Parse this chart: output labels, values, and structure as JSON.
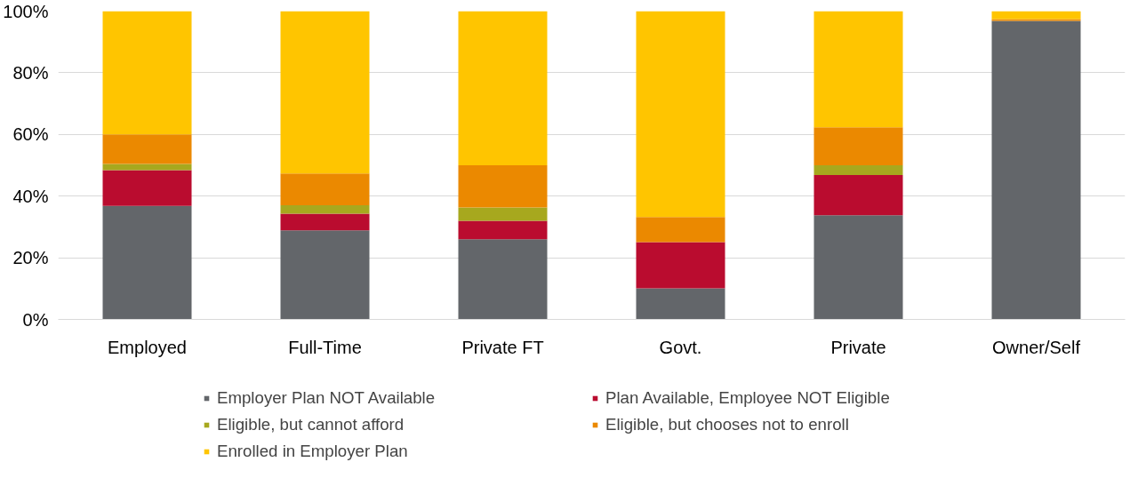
{
  "chart_data": {
    "type": "bar",
    "stacked": true,
    "categories": [
      "Employed",
      "Full-Time",
      "Private FT",
      "Govt.",
      "Private",
      "Owner/Self"
    ],
    "series": [
      {
        "name": "Employer Plan NOT Available",
        "color": "#63666a",
        "values": [
          36.8,
          28.9,
          26.0,
          10.1,
          33.8,
          96.8
        ]
      },
      {
        "name": "Plan Available, Employee NOT Eligible",
        "color": "#ba0c2f",
        "values": [
          11.6,
          5.4,
          6.0,
          15.0,
          13.0,
          0
        ]
      },
      {
        "name": "Eligible, but cannot afford",
        "color": "#a7a81e",
        "values": [
          2.0,
          2.7,
          4.3,
          0,
          3.2,
          0
        ]
      },
      {
        "name": "Eligible, but chooses not to enroll",
        "color": "#eb8900",
        "values": [
          9.6,
          10.3,
          13.7,
          8.1,
          12.3,
          0.6
        ]
      },
      {
        "name": "Enrolled in Employer Plan",
        "color": "#ffc500",
        "values": [
          40.0,
          52.7,
          50.0,
          66.8,
          37.7,
          2.6
        ]
      }
    ],
    "ylim": [
      0,
      100
    ],
    "yticks": [
      {
        "value": 0,
        "label": "0%"
      },
      {
        "value": 20,
        "label": "20%"
      },
      {
        "value": 40,
        "label": "40%"
      },
      {
        "value": 60,
        "label": "60%"
      },
      {
        "value": 80,
        "label": "80%"
      },
      {
        "value": 100,
        "label": "100%"
      }
    ],
    "grid": "y",
    "legend": "bottom"
  }
}
